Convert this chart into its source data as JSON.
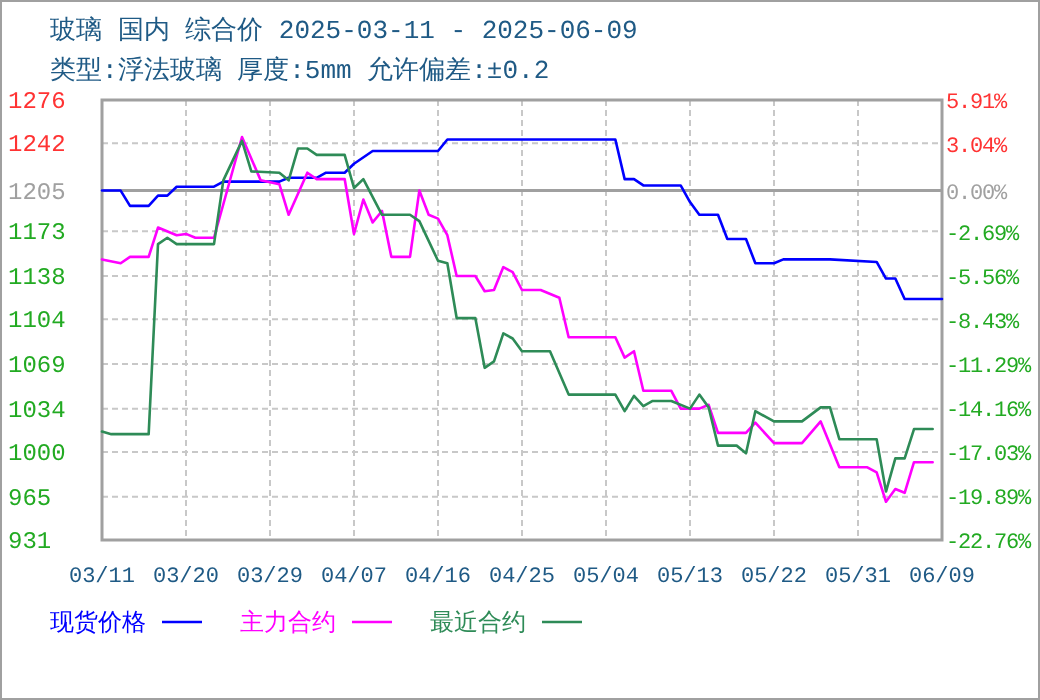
{
  "chart_data": {
    "type": "line",
    "title": "玻璃 国内 综合价 2025-03-11 - 2025-06-09",
    "subtitle": "类型:浮法玻璃 厚度:5mm 允许偏差:±0.2",
    "xlim": [
      "2025-03-11",
      "2025-06-09"
    ],
    "xticks": [
      {
        "value": "2025-03-11",
        "label": "03/11"
      },
      {
        "value": "2025-03-20",
        "label": "03/20"
      },
      {
        "value": "2025-03-29",
        "label": "03/29"
      },
      {
        "value": "2025-04-07",
        "label": "04/07"
      },
      {
        "value": "2025-04-16",
        "label": "04/16"
      },
      {
        "value": "2025-04-25",
        "label": "04/25"
      },
      {
        "value": "2025-05-04",
        "label": "05/04"
      },
      {
        "value": "2025-05-13",
        "label": "05/13"
      },
      {
        "value": "2025-05-22",
        "label": "05/22"
      },
      {
        "value": "2025-05-31",
        "label": "05/31"
      },
      {
        "value": "2025-06-09",
        "label": "06/09"
      }
    ],
    "ylim": [
      931,
      1276
    ],
    "yticks": [
      931,
      965,
      1000,
      1034,
      1069,
      1104,
      1138,
      1173,
      1205,
      1242,
      1276
    ],
    "y2lim": [
      -22.76,
      5.91
    ],
    "y2ticks": [
      {
        "value": -22.76,
        "label": "-22.76%"
      },
      {
        "value": -19.89,
        "label": "-19.89%"
      },
      {
        "value": -17.03,
        "label": "-17.03%"
      },
      {
        "value": -14.16,
        "label": "-14.16%"
      },
      {
        "value": -11.29,
        "label": "-11.29%"
      },
      {
        "value": -8.43,
        "label": "-8.43%"
      },
      {
        "value": -5.56,
        "label": "-5.56%"
      },
      {
        "value": -2.69,
        "label": "-2.69%"
      },
      {
        "value": 0,
        "label": "0.00%"
      },
      {
        "value": 3.04,
        "label": "3.04%"
      },
      {
        "value": 5.91,
        "label": "5.91%"
      }
    ],
    "grid": true,
    "legend": "bottom",
    "ref_lines": [
      {
        "axis": "y",
        "value": 1205,
        "color": "#a0a0a0"
      }
    ],
    "series": [
      {
        "name": "现货价格",
        "color": "#0000ff",
        "x": [
          "2025-03-11",
          "2025-03-13",
          "2025-03-14",
          "2025-03-16",
          "2025-03-17",
          "2025-03-18",
          "2025-03-19",
          "2025-03-23",
          "2025-03-24",
          "2025-03-30",
          "2025-03-31",
          "2025-04-03",
          "2025-04-04",
          "2025-04-06",
          "2025-04-07",
          "2025-04-09",
          "2025-04-16",
          "2025-04-17",
          "2025-05-05",
          "2025-05-06",
          "2025-05-07",
          "2025-05-08",
          "2025-05-12",
          "2025-05-13",
          "2025-05-14",
          "2025-05-16",
          "2025-05-17",
          "2025-05-19",
          "2025-05-20",
          "2025-05-22",
          "2025-05-23",
          "2025-05-28",
          "2025-06-02",
          "2025-06-03",
          "2025-06-04",
          "2025-06-05",
          "2025-06-09"
        ],
        "values": [
          1205,
          1205,
          1193,
          1193,
          1201,
          1201,
          1208,
          1208,
          1212,
          1212,
          1215,
          1215,
          1219,
          1219,
          1226,
          1236,
          1236,
          1245,
          1245,
          1214,
          1214,
          1209,
          1209,
          1196,
          1186,
          1186,
          1167,
          1167,
          1148,
          1148,
          1151,
          1151,
          1149,
          1136,
          1136,
          1120,
          1120
        ]
      },
      {
        "name": "主力合约",
        "color": "#ff00ff",
        "x": [
          "2025-03-11",
          "2025-03-13",
          "2025-03-14",
          "2025-03-16",
          "2025-03-17",
          "2025-03-19",
          "2025-03-20",
          "2025-03-21",
          "2025-03-23",
          "2025-03-26",
          "2025-03-28",
          "2025-03-30",
          "2025-03-31",
          "2025-04-02",
          "2025-04-03",
          "2025-04-06",
          "2025-04-07",
          "2025-04-08",
          "2025-04-09",
          "2025-04-10",
          "2025-04-11",
          "2025-04-13",
          "2025-04-14",
          "2025-04-15",
          "2025-04-16",
          "2025-04-17",
          "2025-04-18",
          "2025-04-20",
          "2025-04-21",
          "2025-04-22",
          "2025-04-23",
          "2025-04-24",
          "2025-04-25",
          "2025-04-27",
          "2025-04-29",
          "2025-04-30",
          "2025-05-05",
          "2025-05-06",
          "2025-05-07",
          "2025-05-08",
          "2025-05-11",
          "2025-05-12",
          "2025-05-14",
          "2025-05-15",
          "2025-05-16",
          "2025-05-19",
          "2025-05-20",
          "2025-05-22",
          "2025-05-25",
          "2025-05-27",
          "2025-05-29",
          "2025-06-01",
          "2025-06-02",
          "2025-06-03",
          "2025-06-04",
          "2025-06-05",
          "2025-06-06",
          "2025-06-08"
        ],
        "values": [
          1151,
          1148,
          1153,
          1153,
          1176,
          1170,
          1171,
          1168,
          1168,
          1247,
          1213,
          1210,
          1186,
          1219,
          1214,
          1214,
          1171,
          1198,
          1180,
          1189,
          1153,
          1153,
          1205,
          1186,
          1183,
          1170,
          1138,
          1138,
          1126,
          1127,
          1145,
          1141,
          1127,
          1127,
          1121,
          1090,
          1090,
          1074,
          1079,
          1048,
          1048,
          1034,
          1034,
          1037,
          1015,
          1015,
          1023,
          1007,
          1007,
          1024,
          988,
          988,
          984,
          961,
          971,
          968,
          992,
          992
        ]
      },
      {
        "name": "最近合约",
        "color": "#2e8b57",
        "x": [
          "2025-03-11",
          "2025-03-12",
          "2025-03-16",
          "2025-03-17",
          "2025-03-18",
          "2025-03-19",
          "2025-03-23",
          "2025-03-24",
          "2025-03-26",
          "2025-03-27",
          "2025-03-30",
          "2025-03-31",
          "2025-04-01",
          "2025-04-02",
          "2025-04-03",
          "2025-04-06",
          "2025-04-07",
          "2025-04-08",
          "2025-04-10",
          "2025-04-13",
          "2025-04-14",
          "2025-04-16",
          "2025-04-17",
          "2025-04-18",
          "2025-04-20",
          "2025-04-21",
          "2025-04-22",
          "2025-04-23",
          "2025-04-24",
          "2025-04-25",
          "2025-04-28",
          "2025-04-30",
          "2025-05-05",
          "2025-05-06",
          "2025-05-07",
          "2025-05-08",
          "2025-05-09",
          "2025-05-11",
          "2025-05-13",
          "2025-05-14",
          "2025-05-15",
          "2025-05-16",
          "2025-05-18",
          "2025-05-19",
          "2025-05-20",
          "2025-05-22",
          "2025-05-25",
          "2025-05-27",
          "2025-05-28",
          "2025-05-29",
          "2025-06-02",
          "2025-06-03",
          "2025-06-04",
          "2025-06-05",
          "2025-06-06",
          "2025-06-08"
        ],
        "values": [
          1016,
          1014,
          1014,
          1163,
          1168,
          1163,
          1163,
          1213,
          1244,
          1220,
          1219,
          1213,
          1238,
          1238,
          1233,
          1233,
          1207,
          1214,
          1186,
          1186,
          1181,
          1150,
          1148,
          1105,
          1105,
          1066,
          1071,
          1093,
          1089,
          1079,
          1079,
          1045,
          1045,
          1032,
          1044,
          1036,
          1040,
          1040,
          1034,
          1045,
          1035,
          1005,
          1005,
          999,
          1032,
          1024,
          1024,
          1035,
          1035,
          1010,
          1010,
          969,
          995,
          995,
          1018,
          1018
        ]
      }
    ]
  }
}
